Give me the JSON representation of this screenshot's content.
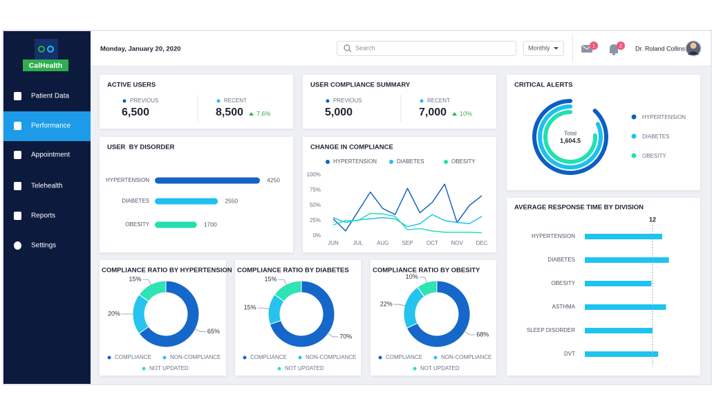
{
  "sidebar": {
    "logo": "CalHealth",
    "nav": [
      "Patient Data",
      "Performance",
      "Appointment",
      "Telehealth",
      "Reports",
      "Settings"
    ],
    "active": 1
  },
  "header": {
    "date": "Monday, January 20, 2020",
    "search": "Search",
    "period": "Monthly",
    "mail_badge": "1",
    "bell_badge": "2",
    "user": "Dr. Roland Collins"
  },
  "active_users": {
    "title": "ACTIVE USERS",
    "previous_label": "PREVIOUS",
    "previous": "6,500",
    "recent_label": "RECENT",
    "recent": "8,500",
    "change": "7.6%"
  },
  "compliance_summary": {
    "title": "USER COMPLIANCE SUMMARY",
    "previous_label": "PREVIOUS",
    "previous": "5,000",
    "recent_label": "RECENT",
    "recent": "7,000",
    "change": "10%"
  },
  "critical_alerts": {
    "title": "CRITICAL ALERTS",
    "total_label": "Total",
    "total": "1,604.5",
    "series": [
      {
        "name": "HYPERTENSION",
        "color": "#0b5fc4",
        "value": 88
      },
      {
        "name": "DIABETES",
        "color": "#1fc0ef",
        "value": 82
      },
      {
        "name": "OBESITY",
        "color": "#22e0b0",
        "value": 76
      }
    ]
  },
  "user_by_disorder": {
    "type": "bar",
    "title": "USER  BY DISORDER",
    "categories": [
      "HYPERTENSION",
      "DIABETES",
      "OBESITY"
    ],
    "values": [
      4250,
      2550,
      1700
    ],
    "colors": [
      "#1563c4",
      "#1fc0ef",
      "#22e0b0"
    ],
    "xlim": [
      0,
      4500
    ]
  },
  "change_in_compliance": {
    "type": "line",
    "title": "CHANGE IN COMPLIANCE",
    "categories": [
      "JUN",
      null,
      "JUL",
      null,
      "AUG",
      null,
      "SEP",
      null,
      "OCT",
      null,
      "NOV",
      null,
      "DEC"
    ],
    "series": [
      {
        "name": "HYPERTENSION",
        "color": "#1563c4",
        "values": [
          28,
          8,
          40,
          72,
          45,
          35,
          78,
          38,
          55,
          85,
          22,
          50,
          66
        ]
      },
      {
        "name": "DIABETES",
        "color": "#1fc0ef",
        "values": [
          30,
          22,
          26,
          28,
          30,
          28,
          15,
          20,
          35,
          25,
          22,
          20,
          32
        ]
      },
      {
        "name": "OBESITY",
        "color": "#22e0b0",
        "values": [
          18,
          25,
          25,
          37,
          36,
          32,
          10,
          12,
          8,
          6,
          6,
          6,
          5
        ]
      }
    ],
    "ylim": [
      0,
      100
    ],
    "yticks": [
      {
        "value": 0,
        "label": "0%"
      },
      {
        "value": 25,
        "label": "25%"
      },
      {
        "value": 50,
        "label": "50%"
      },
      {
        "value": 75,
        "label": "75%"
      },
      {
        "value": 100,
        "label": "100%"
      }
    ]
  },
  "ratio_legend": {
    "names": [
      "COMPLIANCE",
      "NON-COMPLIANCE",
      "NOT UPDATED"
    ],
    "colors": [
      "#1567c9",
      "#26c3ef",
      "#2ee3b4"
    ]
  },
  "compliance_ratios": [
    {
      "type": "pie",
      "title": "COMPLIANCE RATIO BY HYPERTENSION",
      "values": [
        65,
        20,
        15
      ],
      "value_labels": [
        "65%",
        "20%",
        "15%"
      ]
    },
    {
      "type": "pie",
      "title": "COMPLIANCE RATIO BY DIABETES",
      "values": [
        70,
        15,
        15
      ],
      "value_labels": [
        "70%",
        "15%",
        "15%"
      ]
    },
    {
      "type": "pie",
      "title": "COMPLIANCE RATIO BY OBESITY",
      "values": [
        68,
        22,
        10
      ],
      "value_labels": [
        "68%",
        "22%",
        "10%"
      ]
    }
  ],
  "response_time": {
    "type": "bar",
    "title": "AVERAGE RESPONSE TIME BY DIVISION",
    "categories": [
      "HYPERTENSION",
      "DIABETES",
      "OBESITY",
      "ASTHMA",
      "SLEEP DISORDER",
      "DVT"
    ],
    "values": [
      13.7,
      14.9,
      11.8,
      14.4,
      12,
      13
    ],
    "color": "#1ec3f0",
    "xlim": [
      0,
      15
    ],
    "reference": 12
  }
}
